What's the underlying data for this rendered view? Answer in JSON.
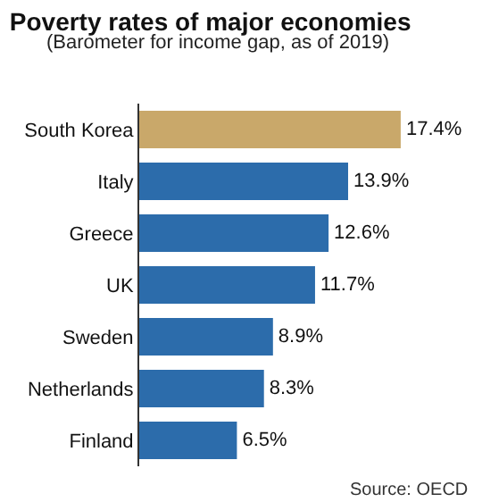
{
  "chart_data": {
    "type": "bar",
    "title": "Poverty rates of major economies",
    "subtitle": "(Barometer for income gap, as of 2019)",
    "orientation": "horizontal",
    "categories": [
      "South Korea",
      "Italy",
      "Greece",
      "UK",
      "Sweden",
      "Netherlands",
      "Finland"
    ],
    "values": [
      17.4,
      13.9,
      12.6,
      11.7,
      8.9,
      8.3,
      6.5
    ],
    "colors": [
      "#c9a86a",
      "#2c6cab",
      "#2c6cab",
      "#2c6cab",
      "#2c6cab",
      "#2c6cab",
      "#2c6cab"
    ],
    "value_labels": [
      "17.4%",
      "13.9%",
      "12.6%",
      "11.7%",
      "8.9%",
      "8.3%",
      "6.5%"
    ],
    "annotations": [
      "Source: OECD"
    ]
  }
}
